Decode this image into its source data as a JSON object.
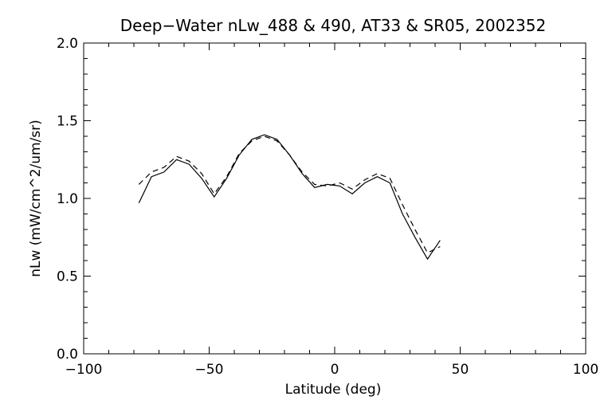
{
  "chart_data": {
    "type": "line",
    "title": "Deep−Water nLw_488 & 490, AT33 & SR05, 2002352",
    "xlabel": "Latitude (deg)",
    "ylabel": "nLw (mW/cm^2/um/sr)",
    "xlim": [
      -100,
      100
    ],
    "ylim": [
      0.0,
      2.0
    ],
    "x_ticks": [
      -100,
      -50,
      0,
      50,
      100
    ],
    "x_tick_labels": [
      "−100",
      "−50",
      "0",
      "50",
      "100"
    ],
    "y_ticks": [
      0.0,
      0.5,
      1.0,
      1.5,
      2.0
    ],
    "y_tick_labels": [
      "0.0",
      "0.5",
      "1.0",
      "1.5",
      "2.0"
    ],
    "grid": false,
    "legend": "none",
    "series": [
      {
        "style": "solid",
        "color": "#000000",
        "x": [
          -78,
          -73,
          -68,
          -63,
          -58,
          -53,
          -48,
          -43,
          -38,
          -33,
          -28,
          -23,
          -18,
          -13,
          -8,
          -3,
          2,
          7,
          12,
          17,
          22,
          27,
          32,
          37,
          42
        ],
        "y": [
          0.97,
          1.14,
          1.17,
          1.25,
          1.22,
          1.13,
          1.01,
          1.13,
          1.28,
          1.38,
          1.41,
          1.38,
          1.28,
          1.16,
          1.07,
          1.09,
          1.08,
          1.03,
          1.1,
          1.14,
          1.1,
          0.9,
          0.75,
          0.61,
          0.73
        ]
      },
      {
        "style": "dashed",
        "color": "#000000",
        "x": [
          -78,
          -73,
          -68,
          -63,
          -58,
          -53,
          -48,
          -43,
          -38,
          -33,
          -28,
          -23,
          -18,
          -13,
          -8,
          -3,
          2,
          7,
          12,
          17,
          22,
          27,
          32,
          37,
          42
        ],
        "y": [
          1.09,
          1.17,
          1.2,
          1.27,
          1.24,
          1.16,
          1.03,
          1.14,
          1.29,
          1.37,
          1.4,
          1.37,
          1.28,
          1.17,
          1.09,
          1.08,
          1.1,
          1.06,
          1.12,
          1.16,
          1.13,
          0.96,
          0.8,
          0.65,
          0.69
        ]
      }
    ]
  }
}
